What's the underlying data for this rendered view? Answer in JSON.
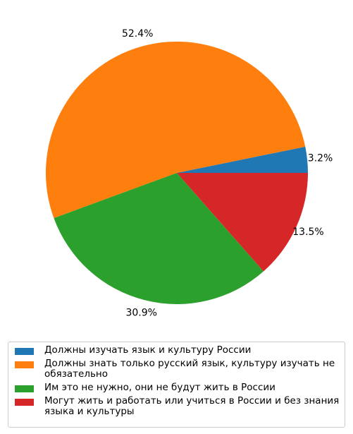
{
  "chart_data": {
    "type": "pie",
    "categories": [
      "Должны изучать язык и культуру России",
      "Должны знать только русский язык, культуру изучать не\nобязательно",
      "Им это не нужно, они не будут жить в России",
      "Могут жить и работать или учиться в России и без знания\nязыка и культуры"
    ],
    "values": [
      3.2,
      52.4,
      30.9,
      13.5
    ],
    "value_labels": [
      "3.2%",
      "52.4%",
      "30.9%",
      "13.5%"
    ],
    "colors": [
      "#1f77b4",
      "#ff7f0e",
      "#2ca02c",
      "#d62728"
    ],
    "start_angle_deg": 0,
    "direction": "counterclockwise",
    "legend_position": "bottom"
  }
}
